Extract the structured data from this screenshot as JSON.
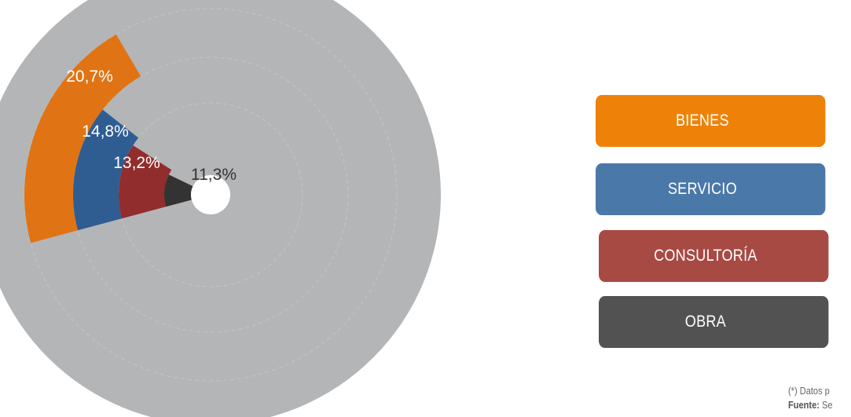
{
  "chart_data": {
    "type": "radial-bar",
    "series": [
      {
        "name": "BIENES",
        "value": 20.7,
        "label": "20,7%",
        "color": "#e07414"
      },
      {
        "name": "SERVICIO",
        "value": 14.8,
        "label": "14,8%",
        "color": "#2f5d92"
      },
      {
        "name": "CONSULTORÍA",
        "value": 13.2,
        "label": "13,2%",
        "color": "#922d2d"
      },
      {
        "name": "OBRA",
        "value": 11.3,
        "label": "11,3%",
        "color": "#333333"
      }
    ],
    "track_color": "#b4b5b7",
    "legend_position": "right"
  },
  "legend": [
    {
      "label": "BIENES",
      "color": "#ee8208"
    },
    {
      "label": "SERVICIO",
      "color": "#4a78a8"
    },
    {
      "label": "CONSULTORÍA",
      "color": "#a84a44"
    },
    {
      "label": "OBRA",
      "color": "#525252"
    }
  ],
  "footnote": {
    "line1": "(*) Datos p",
    "line2_bold": "Fuente:",
    "line2_rest": " Se"
  }
}
